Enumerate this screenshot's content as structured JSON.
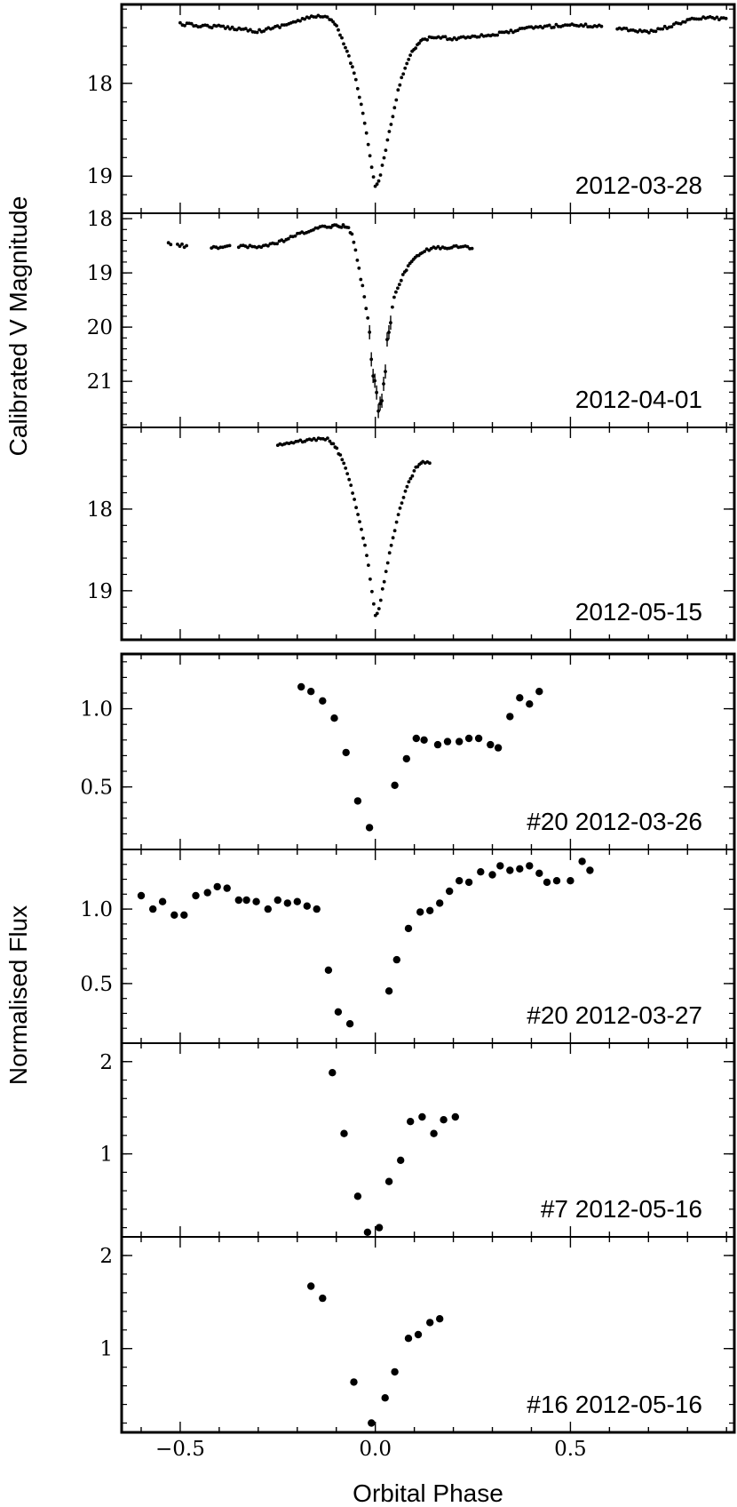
{
  "figure": {
    "xlabel": "Orbital Phase",
    "ylabel_top": "Calibrated V Magnitude",
    "ylabel_bottom": "Normalised Flux",
    "xticks": [
      -0.5,
      0.0,
      0.5
    ],
    "xtick_labels": [
      "−0.5",
      "0.0",
      "0.5"
    ],
    "xlim": [
      -0.65,
      0.92
    ],
    "colors": {
      "points": "#000000",
      "axes": "#000000"
    }
  },
  "chart_data": [
    {
      "type": "scatter",
      "label": "2012-03-28",
      "ylabel": "Calibrated V Magnitude",
      "inverted_y": true,
      "ylim": [
        17.15,
        19.4
      ],
      "yticks": [
        18,
        19
      ],
      "ytick_labels": [
        "18",
        "19"
      ],
      "dense": true,
      "curve": [
        [
          -0.5,
          17.36
        ],
        [
          -0.45,
          17.38
        ],
        [
          -0.4,
          17.39
        ],
        [
          -0.33,
          17.42
        ],
        [
          -0.3,
          17.44
        ],
        [
          -0.25,
          17.39
        ],
        [
          -0.2,
          17.33
        ],
        [
          -0.15,
          17.27
        ],
        [
          -0.12,
          17.3
        ],
        [
          -0.1,
          17.38
        ],
        [
          -0.09,
          17.48
        ],
        [
          -0.07,
          17.68
        ],
        [
          -0.05,
          17.95
        ],
        [
          -0.03,
          18.35
        ],
        [
          -0.015,
          18.75
        ],
        [
          -0.005,
          19.0
        ],
        [
          0.0,
          19.12
        ],
        [
          0.01,
          19.05
        ],
        [
          0.02,
          18.85
        ],
        [
          0.04,
          18.45
        ],
        [
          0.06,
          18.05
        ],
        [
          0.08,
          17.78
        ],
        [
          0.1,
          17.62
        ],
        [
          0.12,
          17.54
        ],
        [
          0.15,
          17.5
        ],
        [
          0.2,
          17.52
        ],
        [
          0.25,
          17.49
        ],
        [
          0.3,
          17.48
        ],
        [
          0.35,
          17.44
        ],
        [
          0.4,
          17.4
        ],
        [
          0.5,
          17.37
        ],
        [
          0.6,
          17.39
        ],
        [
          0.65,
          17.42
        ],
        [
          0.7,
          17.45
        ],
        [
          0.76,
          17.38
        ],
        [
          0.8,
          17.32
        ],
        [
          0.85,
          17.29
        ],
        [
          0.9,
          17.31
        ]
      ],
      "gaps": [
        [
          -0.6,
          -0.51
        ],
        [
          0.58,
          0.62
        ]
      ]
    },
    {
      "type": "scatter",
      "label": "2012-04-01",
      "ylabel": "Calibrated V Magnitude",
      "inverted_y": true,
      "ylim": [
        17.9,
        21.85
      ],
      "yticks": [
        18,
        19,
        20,
        21
      ],
      "ytick_labels": [
        "18",
        "19",
        "20",
        "21"
      ],
      "dense": true,
      "curve": [
        [
          -0.53,
          18.45
        ],
        [
          -0.47,
          18.53
        ],
        [
          -0.38,
          18.52
        ],
        [
          -0.3,
          18.52
        ],
        [
          -0.25,
          18.45
        ],
        [
          -0.2,
          18.3
        ],
        [
          -0.15,
          18.18
        ],
        [
          -0.1,
          18.12
        ],
        [
          -0.07,
          18.15
        ],
        [
          -0.06,
          18.3
        ],
        [
          -0.05,
          18.6
        ],
        [
          -0.04,
          19.0
        ],
        [
          -0.03,
          19.35
        ],
        [
          -0.02,
          19.8
        ],
        [
          -0.01,
          20.5
        ],
        [
          0.0,
          21.1
        ],
        [
          0.01,
          21.5
        ],
        [
          0.02,
          21.0
        ],
        [
          0.03,
          20.4
        ],
        [
          0.04,
          19.8
        ],
        [
          0.05,
          19.4
        ],
        [
          0.07,
          19.05
        ],
        [
          0.1,
          18.72
        ],
        [
          0.14,
          18.55
        ],
        [
          0.2,
          18.52
        ],
        [
          0.25,
          18.53
        ]
      ],
      "gaps": [
        [
          -0.65,
          -0.54
        ],
        [
          -0.52,
          -0.51
        ],
        [
          -0.48,
          -0.42
        ],
        [
          -0.37,
          -0.355
        ],
        [
          0.255,
          0.92
        ]
      ],
      "noise_region": [
        -0.015,
        0.04,
        0.45
      ]
    },
    {
      "type": "scatter",
      "label": "2012-05-15",
      "ylabel": "Calibrated V Magnitude",
      "inverted_y": true,
      "ylim": [
        17.0,
        19.6
      ],
      "yticks": [
        18,
        19
      ],
      "ytick_labels": [
        "18",
        "19"
      ],
      "dense": true,
      "curve": [
        [
          -0.25,
          17.22
        ],
        [
          -0.2,
          17.18
        ],
        [
          -0.15,
          17.14
        ],
        [
          -0.12,
          17.15
        ],
        [
          -0.1,
          17.25
        ],
        [
          -0.08,
          17.45
        ],
        [
          -0.06,
          17.75
        ],
        [
          -0.04,
          18.15
        ],
        [
          -0.02,
          18.6
        ],
        [
          -0.01,
          18.95
        ],
        [
          0.0,
          19.3
        ],
        [
          0.01,
          19.22
        ],
        [
          0.02,
          18.95
        ],
        [
          0.04,
          18.45
        ],
        [
          0.06,
          18.05
        ],
        [
          0.08,
          17.75
        ],
        [
          0.1,
          17.52
        ],
        [
          0.12,
          17.43
        ],
        [
          0.14,
          17.44
        ]
      ],
      "gaps": [
        [
          -0.65,
          -0.26
        ],
        [
          0.145,
          0.92
        ]
      ]
    },
    {
      "type": "scatter",
      "label": "#20 2012-03-26",
      "ylabel": "Normalised Flux",
      "inverted_y": false,
      "ylim": [
        0.1,
        1.35
      ],
      "yticks": [
        0.5,
        1.0
      ],
      "ytick_labels": [
        "0.5",
        "1.0"
      ],
      "points": [
        [
          -0.19,
          1.14
        ],
        [
          -0.165,
          1.11
        ],
        [
          -0.135,
          1.05
        ],
        [
          -0.105,
          0.94
        ],
        [
          -0.075,
          0.72
        ],
        [
          -0.045,
          0.41
        ],
        [
          -0.015,
          0.24
        ],
        [
          0.05,
          0.51
        ],
        [
          0.08,
          0.68
        ],
        [
          0.105,
          0.81
        ],
        [
          0.125,
          0.8
        ],
        [
          0.16,
          0.77
        ],
        [
          0.185,
          0.79
        ],
        [
          0.215,
          0.79
        ],
        [
          0.24,
          0.81
        ],
        [
          0.265,
          0.81
        ],
        [
          0.295,
          0.77
        ],
        [
          0.315,
          0.75
        ],
        [
          0.345,
          0.95
        ],
        [
          0.37,
          1.07
        ],
        [
          0.395,
          1.03
        ],
        [
          0.42,
          1.11
        ]
      ]
    },
    {
      "type": "scatter",
      "label": "#20 2012-03-27",
      "ylabel": "Normalised Flux",
      "inverted_y": false,
      "ylim": [
        0.1,
        1.4
      ],
      "yticks": [
        0.5,
        1.0
      ],
      "ytick_labels": [
        "0.5",
        "1.0"
      ],
      "points": [
        [
          -0.6,
          1.09
        ],
        [
          -0.57,
          1.0
        ],
        [
          -0.545,
          1.05
        ],
        [
          -0.515,
          0.96
        ],
        [
          -0.49,
          0.96
        ],
        [
          -0.46,
          1.09
        ],
        [
          -0.43,
          1.11
        ],
        [
          -0.405,
          1.15
        ],
        [
          -0.38,
          1.14
        ],
        [
          -0.35,
          1.06
        ],
        [
          -0.33,
          1.06
        ],
        [
          -0.305,
          1.05
        ],
        [
          -0.275,
          1.0
        ],
        [
          -0.25,
          1.06
        ],
        [
          -0.225,
          1.04
        ],
        [
          -0.2,
          1.05
        ],
        [
          -0.175,
          1.02
        ],
        [
          -0.15,
          1.0
        ],
        [
          -0.12,
          0.59
        ],
        [
          -0.095,
          0.31
        ],
        [
          -0.065,
          0.23
        ],
        [
          0.035,
          0.45
        ],
        [
          0.055,
          0.66
        ],
        [
          0.085,
          0.87
        ],
        [
          0.115,
          0.98
        ],
        [
          0.14,
          0.99
        ],
        [
          0.165,
          1.04
        ],
        [
          0.19,
          1.12
        ],
        [
          0.215,
          1.19
        ],
        [
          0.24,
          1.18
        ],
        [
          0.27,
          1.25
        ],
        [
          0.3,
          1.23
        ],
        [
          0.32,
          1.29
        ],
        [
          0.345,
          1.26
        ],
        [
          0.37,
          1.27
        ],
        [
          0.395,
          1.29
        ],
        [
          0.42,
          1.24
        ],
        [
          0.44,
          1.18
        ],
        [
          0.465,
          1.19
        ],
        [
          0.5,
          1.19
        ],
        [
          0.53,
          1.32
        ],
        [
          0.55,
          1.26
        ]
      ]
    },
    {
      "type": "scatter",
      "label": "#7 2012-05-16",
      "ylabel": "Normalised Flux",
      "inverted_y": false,
      "ylim": [
        0.1,
        2.2
      ],
      "yticks": [
        1,
        2
      ],
      "ytick_labels": [
        "1",
        "2"
      ],
      "points": [
        [
          -0.11,
          1.88
        ],
        [
          -0.08,
          1.22
        ],
        [
          -0.045,
          0.54
        ],
        [
          -0.02,
          0.15
        ],
        [
          0.01,
          0.2
        ],
        [
          0.035,
          0.7
        ],
        [
          0.065,
          0.93
        ],
        [
          0.09,
          1.35
        ],
        [
          0.12,
          1.4
        ],
        [
          0.15,
          1.22
        ],
        [
          0.175,
          1.37
        ],
        [
          0.205,
          1.4
        ]
      ]
    },
    {
      "type": "scatter",
      "label": "#16 2012-05-16",
      "ylabel": "Normalised Flux",
      "inverted_y": false,
      "ylim": [
        0.1,
        2.2
      ],
      "yticks": [
        1,
        2
      ],
      "ytick_labels": [
        "1",
        "2"
      ],
      "points": [
        [
          -0.165,
          1.67
        ],
        [
          -0.135,
          1.54
        ],
        [
          -0.055,
          0.64
        ],
        [
          -0.01,
          0.2
        ],
        [
          0.025,
          0.47
        ],
        [
          0.05,
          0.75
        ],
        [
          0.085,
          1.11
        ],
        [
          0.11,
          1.15
        ],
        [
          0.14,
          1.28
        ],
        [
          0.165,
          1.32
        ]
      ]
    }
  ]
}
